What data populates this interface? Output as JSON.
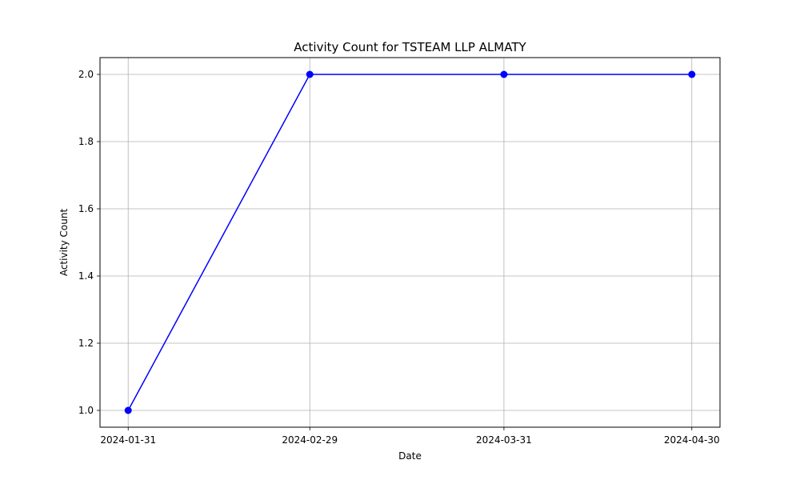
{
  "chart_data": {
    "type": "line",
    "title": "Activity Count for TSTEAM LLP ALMATY",
    "xlabel": "Date",
    "ylabel": "Activity Count",
    "x": [
      "2024-01-31",
      "2024-02-29",
      "2024-03-31",
      "2024-04-30"
    ],
    "xticks": [
      "2024-01-31",
      "2024-02-29",
      "2024-03-31",
      "2024-04-30"
    ],
    "series": [
      {
        "values": [
          1,
          2,
          2,
          2
        ],
        "color": "#0000ff",
        "marker": "circle"
      }
    ],
    "ylim": [
      0.95,
      2.05
    ],
    "yticks": [
      1.0,
      1.2,
      1.4,
      1.6,
      1.8,
      2.0
    ],
    "ytick_labels": [
      "1.0",
      "1.2",
      "1.4",
      "1.6",
      "1.8",
      "2.0"
    ],
    "grid": true,
    "grid_color": "#b0b0b0",
    "legend": "none"
  }
}
